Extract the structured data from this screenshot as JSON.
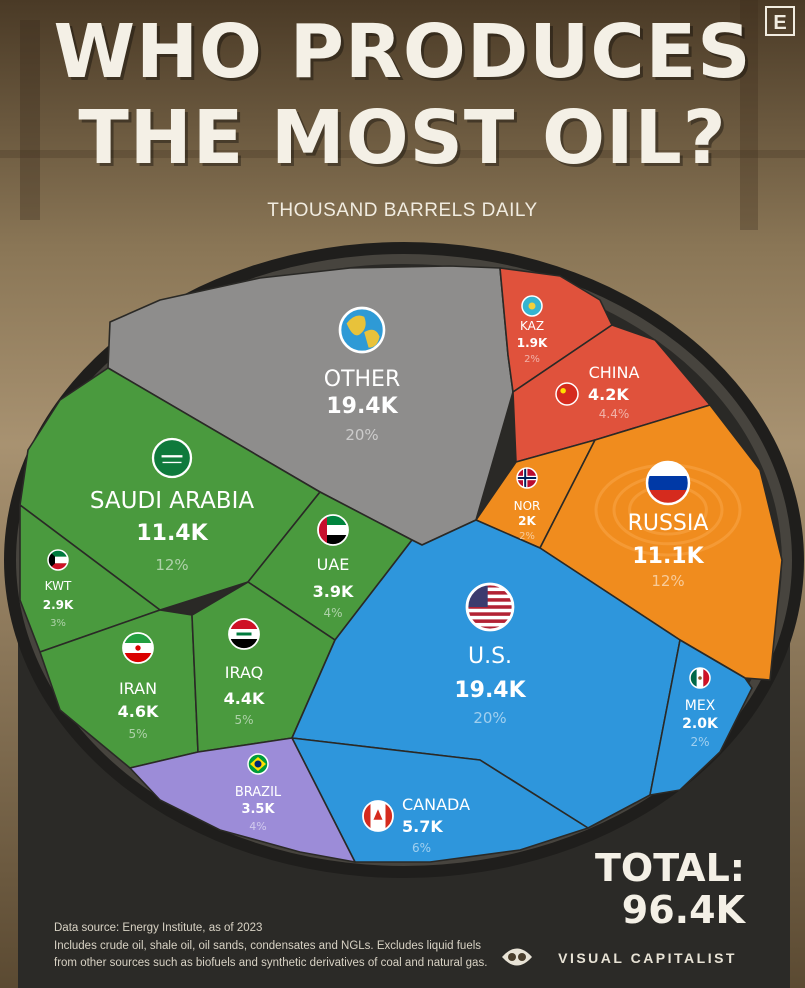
{
  "title_line1": "WHO PRODUCES",
  "title_line2": "THE MOST OIL?",
  "subtitle": "THOUSAND BARRELS DAILY",
  "logo": "E",
  "chart_data": {
    "type": "treemap",
    "unit": "thousand barrels daily",
    "total_label": "TOTAL:",
    "total_value": "96.4K",
    "total": 96.4,
    "items": [
      {
        "name": "OTHER",
        "value": 19.4,
        "value_label": "19.4K",
        "share": "20%",
        "color": "#8e8d8c",
        "icon": "globe-icon"
      },
      {
        "name": "KAZ",
        "value": 1.9,
        "value_label": "1.9K",
        "share": "2%",
        "color": "#e0523c",
        "icon": "kazakhstan-flag-icon"
      },
      {
        "name": "CHINA",
        "value": 4.2,
        "value_label": "4.2K",
        "share": "4.4%",
        "color": "#e0523c",
        "icon": "china-flag-icon"
      },
      {
        "name": "SAUDI ARABIA",
        "value": 11.4,
        "value_label": "11.4K",
        "share": "12%",
        "color": "#4a9a3e",
        "icon": "saudi-arabia-flag-icon"
      },
      {
        "name": "UAE",
        "value": 3.9,
        "value_label": "3.9K",
        "share": "4%",
        "color": "#4a9a3e",
        "icon": "uae-flag-icon"
      },
      {
        "name": "KWT",
        "value": 2.9,
        "value_label": "2.9K",
        "share": "3%",
        "color": "#4a9a3e",
        "icon": "kuwait-flag-icon"
      },
      {
        "name": "IRAN",
        "value": 4.6,
        "value_label": "4.6K",
        "share": "5%",
        "color": "#4a9a3e",
        "icon": "iran-flag-icon"
      },
      {
        "name": "IRAQ",
        "value": 4.4,
        "value_label": "4.4K",
        "share": "5%",
        "color": "#4a9a3e",
        "icon": "iraq-flag-icon"
      },
      {
        "name": "NOR",
        "value": 2.0,
        "value_label": "2K",
        "share": "2%",
        "color": "#f08c1e",
        "icon": "norway-flag-icon"
      },
      {
        "name": "RUSSIA",
        "value": 11.1,
        "value_label": "11.1K",
        "share": "12%",
        "color": "#f08c1e",
        "icon": "russia-flag-icon"
      },
      {
        "name": "U.S.",
        "value": 19.4,
        "value_label": "19.4K",
        "share": "20%",
        "color": "#2e96dc",
        "icon": "usa-flag-icon"
      },
      {
        "name": "MEX",
        "value": 2.0,
        "value_label": "2.0K",
        "share": "2%",
        "color": "#2e96dc",
        "icon": "mexico-flag-icon"
      },
      {
        "name": "CANADA",
        "value": 5.7,
        "value_label": "5.7K",
        "share": "6%",
        "color": "#2e96dc",
        "icon": "canada-flag-icon"
      },
      {
        "name": "BRAZIL",
        "value": 3.5,
        "value_label": "3.5K",
        "share": "4%",
        "color": "#9c8cd8",
        "icon": "brazil-flag-icon"
      }
    ]
  },
  "notes": {
    "line1": "Data source: Energy Institute, as of 2023",
    "line2": "Includes crude oil, shale oil, oil sands, condensates and NGLs. Excludes liquid fuels",
    "line3": "from other sources such as biofuels and synthetic derivatives of coal and natural gas."
  },
  "brand": "VISUAL CAPITALIST"
}
